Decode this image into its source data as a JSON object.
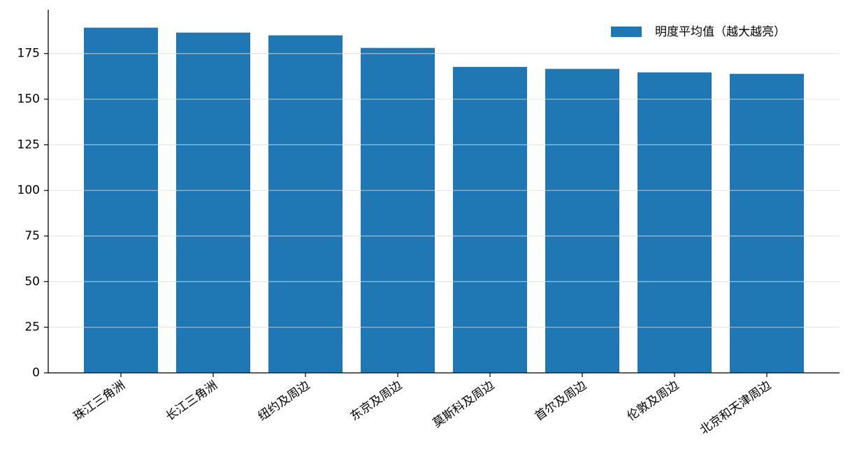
{
  "chart_data": {
    "type": "bar",
    "categories": [
      "珠江三角洲",
      "长江三角洲",
      "纽约及周边",
      "东京及周边",
      "莫斯科及周边",
      "首尔及周边",
      "伦敦及周边",
      "北京和天津周边"
    ],
    "series": [
      {
        "name": "明度平均值（越大越亮）",
        "color": "#1f77b4",
        "values": [
          189.2,
          186.5,
          185.0,
          178.1,
          167.7,
          166.6,
          164.7,
          163.9
        ]
      }
    ],
    "ylim": [
      0,
      199
    ],
    "yticks": [
      0,
      25,
      50,
      75,
      100,
      125,
      150,
      175
    ],
    "grid": true,
    "legend_loc": "upper right"
  }
}
